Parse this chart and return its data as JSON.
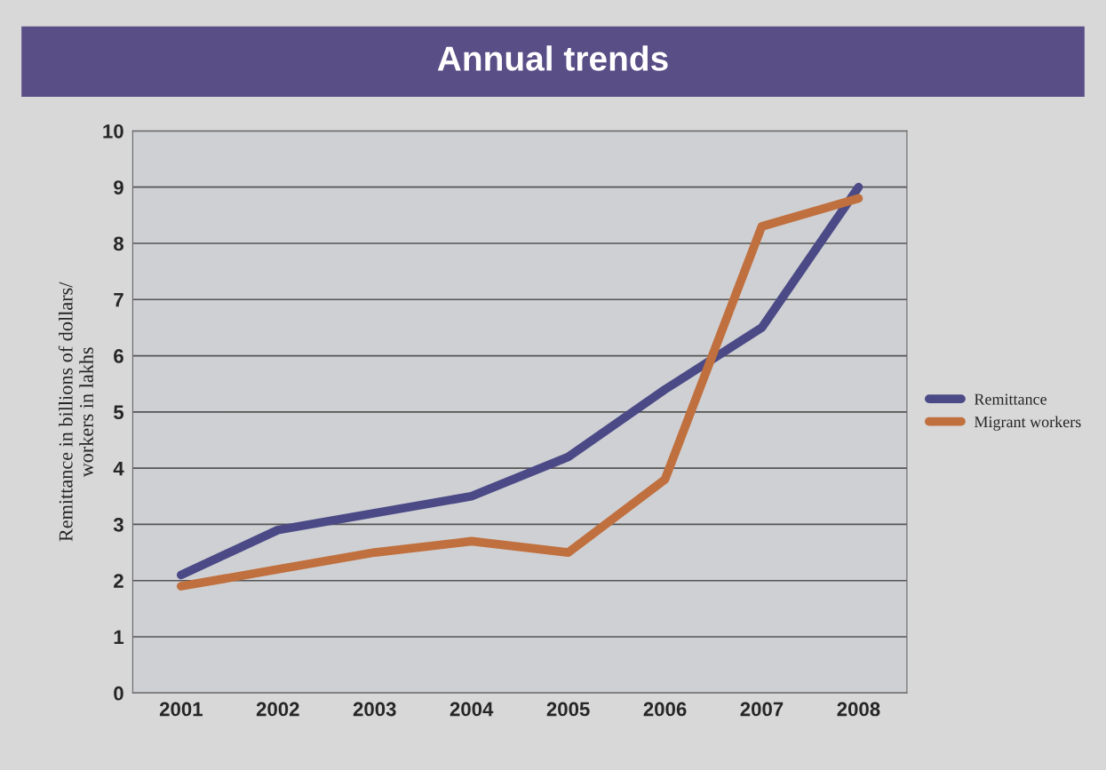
{
  "chart_data": {
    "type": "line",
    "title": "Annual trends",
    "ylabel": "Remittance in billions of dollars/\nworkers in lakhs",
    "categories": [
      "2001",
      "2002",
      "2003",
      "2004",
      "2005",
      "2006",
      "2007",
      "2008"
    ],
    "series": [
      {
        "name": "Remittance",
        "color": "#4b4a86",
        "values": [
          2.1,
          2.9,
          3.2,
          3.5,
          4.2,
          5.4,
          6.5,
          9.0
        ]
      },
      {
        "name": "Migrant workers",
        "color": "#c0703e",
        "values": [
          1.9,
          2.2,
          2.5,
          2.7,
          2.5,
          3.8,
          8.3,
          8.8
        ]
      }
    ],
    "ylim": [
      0,
      10
    ],
    "yticks": [
      0,
      1,
      2,
      3,
      4,
      5,
      6,
      7,
      8,
      9,
      10
    ],
    "grid": "y",
    "legend": "right",
    "marker": "none",
    "line_style": "solid"
  }
}
